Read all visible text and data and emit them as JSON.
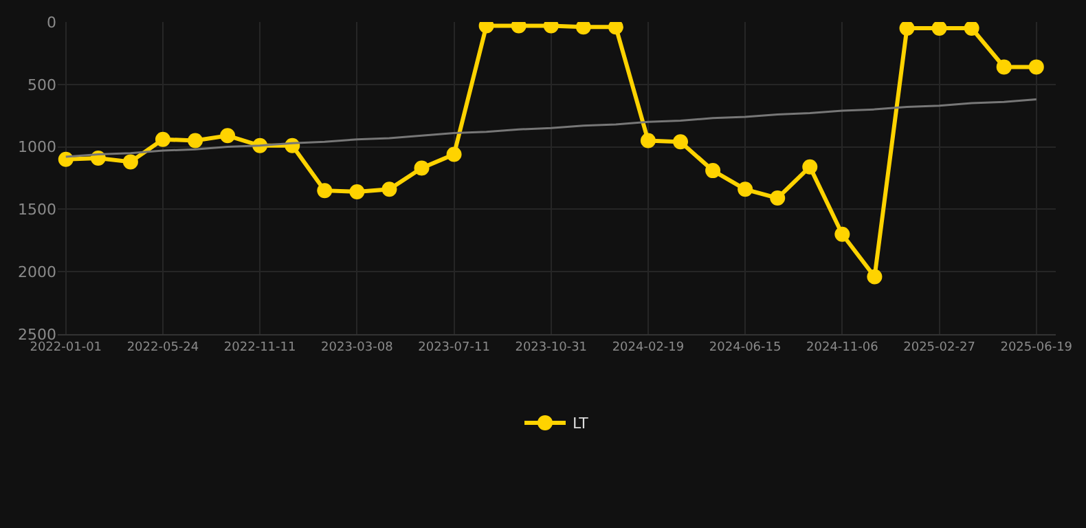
{
  "chart_data": {
    "type": "line",
    "categories": [
      "2022-01-01",
      null,
      null,
      "2022-05-24",
      null,
      null,
      "2022-11-11",
      null,
      null,
      "2023-03-08",
      null,
      null,
      "2023-07-11",
      null,
      null,
      "2023-10-31",
      null,
      null,
      "2024-02-19",
      null,
      null,
      "2024-06-15",
      null,
      null,
      "2024-11-06",
      null,
      null,
      "2025-02-27",
      null,
      null,
      "2025-06-19"
    ],
    "series": [
      {
        "name": "LT",
        "color": "#ffd300",
        "marker": "circle",
        "values": [
          1100,
          1090,
          1120,
          940,
          950,
          910,
          990,
          990,
          1350,
          1360,
          1340,
          1170,
          1060,
          30,
          30,
          30,
          40,
          40,
          950,
          960,
          1190,
          1340,
          1410,
          1160,
          1700,
          2040,
          50,
          50,
          50,
          360,
          360
        ]
      },
      {
        "type": "line",
        "color": "#777777",
        "marker": "none",
        "values": [
          1080,
          1060,
          1050,
          1030,
          1020,
          1000,
          990,
          970,
          960,
          940,
          930,
          910,
          890,
          880,
          860,
          850,
          830,
          820,
          800,
          790,
          770,
          760,
          740,
          730,
          710,
          700,
          680,
          670,
          650,
          640,
          620
        ]
      }
    ],
    "ylim": [
      2500,
      0
    ],
    "yticks": [
      0,
      500,
      1000,
      1500,
      2000,
      2500
    ],
    "grid": true,
    "legend": "bottom"
  }
}
